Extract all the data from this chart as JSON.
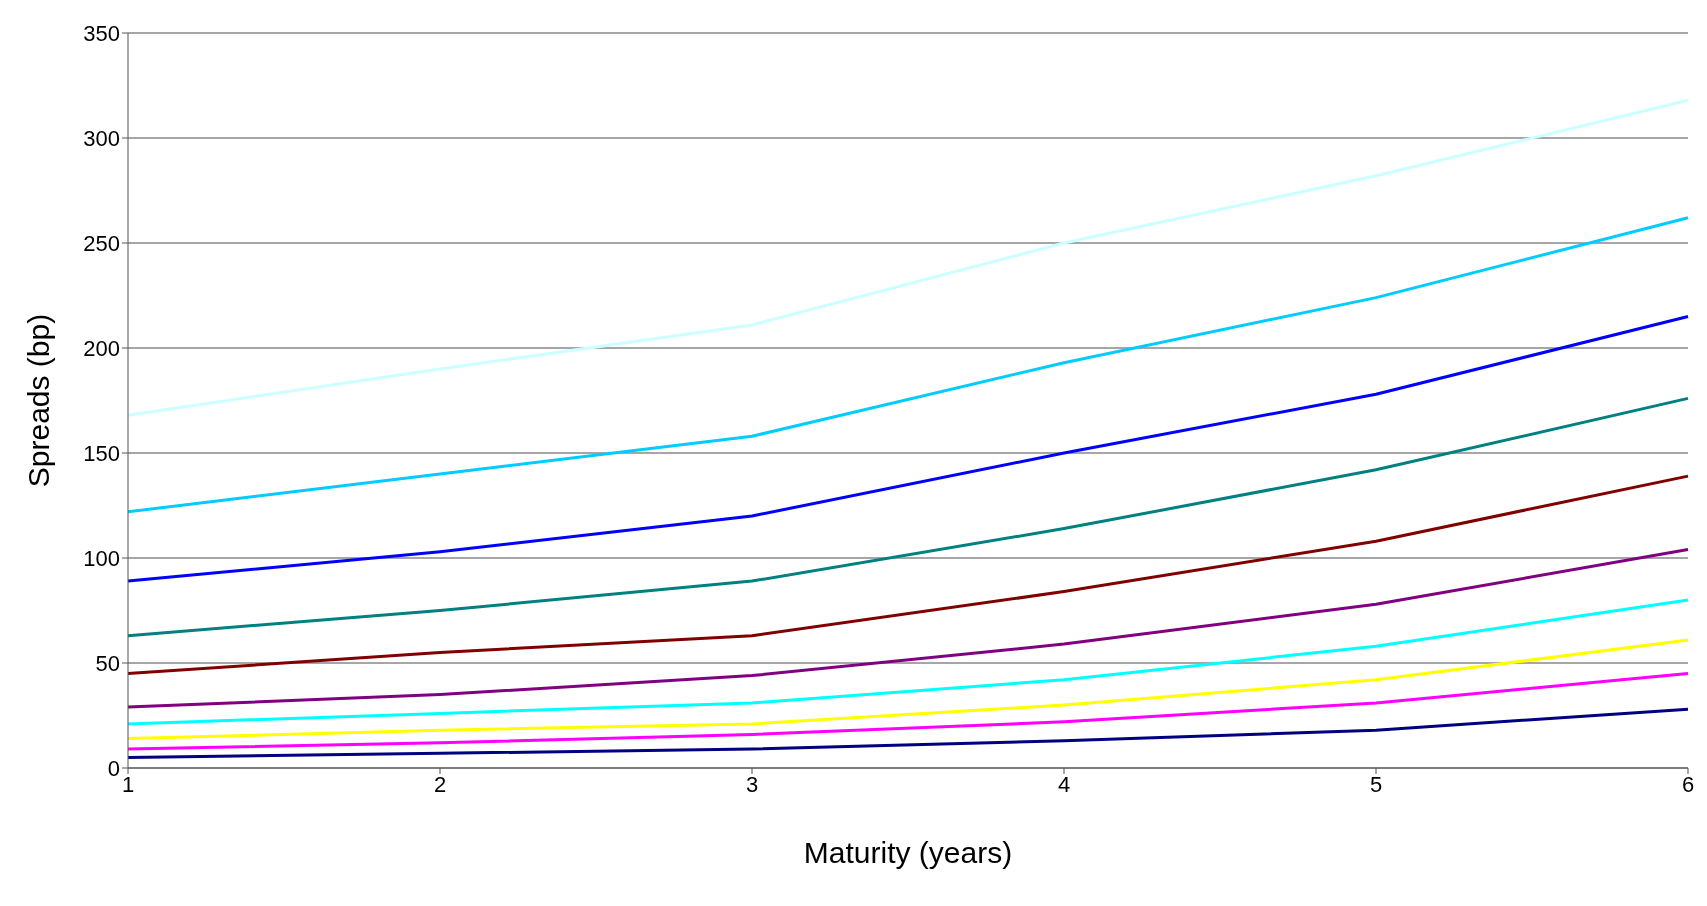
{
  "chart_data": {
    "type": "line",
    "xlabel": "Maturity (years)",
    "ylabel": "Spreads (bp)",
    "categories": [
      "1",
      "2",
      "3",
      "4",
      "5",
      "6"
    ],
    "series": [
      {
        "color": "#ccffff",
        "values": [
          168,
          190,
          211,
          250,
          282,
          318
        ]
      },
      {
        "color": "#00ccff",
        "values": [
          122,
          140,
          158,
          193,
          224,
          262
        ]
      },
      {
        "color": "#0000ff",
        "values": [
          89,
          103,
          120,
          150,
          178,
          215
        ]
      },
      {
        "color": "#008080",
        "values": [
          63,
          75,
          89,
          114,
          142,
          176
        ]
      },
      {
        "color": "#800000",
        "values": [
          45,
          55,
          63,
          84,
          108,
          139
        ]
      },
      {
        "color": "#800080",
        "values": [
          29,
          35,
          44,
          59,
          78,
          104
        ]
      },
      {
        "color": "#00ffff",
        "values": [
          21,
          26,
          31,
          42,
          58,
          80
        ]
      },
      {
        "color": "#ffff00",
        "values": [
          14,
          18,
          21,
          30,
          42,
          61
        ]
      },
      {
        "color": "#ff00ff",
        "values": [
          9,
          12,
          16,
          22,
          31,
          45
        ]
      },
      {
        "color": "#000080",
        "values": [
          5,
          7,
          9,
          13,
          18,
          28
        ]
      }
    ],
    "ylim": [
      0,
      350
    ],
    "yticks": [
      0,
      50,
      100,
      150,
      200,
      250,
      300,
      350
    ],
    "grid": "y",
    "marker": "none",
    "line_style": "solid",
    "legend": false
  }
}
